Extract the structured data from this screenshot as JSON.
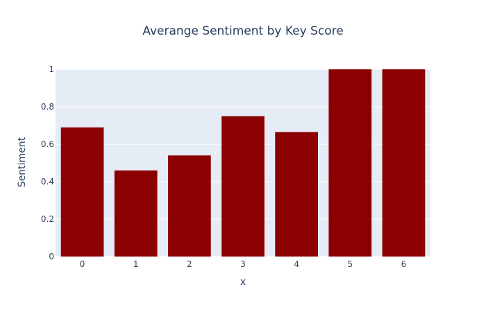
{
  "chart_data": {
    "type": "bar",
    "title": "Averange Sentiment by Key Score",
    "xlabel": "x",
    "ylabel": "Sentiment",
    "categories": [
      "0",
      "1",
      "2",
      "3",
      "4",
      "5",
      "6"
    ],
    "values": [
      0.69,
      0.46,
      0.54,
      0.75,
      0.665,
      1.0,
      1.0
    ],
    "ylim": [
      0,
      1
    ],
    "yticks": [
      "0",
      "0.2",
      "0.4",
      "0.6",
      "0.8",
      "1"
    ],
    "ytick_values": [
      0,
      0.2,
      0.4,
      0.6,
      0.8,
      1
    ],
    "grid": true,
    "colors": {
      "bar": "#8b0000",
      "plot_background": "#e5ecf6",
      "grid": "#ffffff",
      "text": "#2a3f5f"
    }
  }
}
